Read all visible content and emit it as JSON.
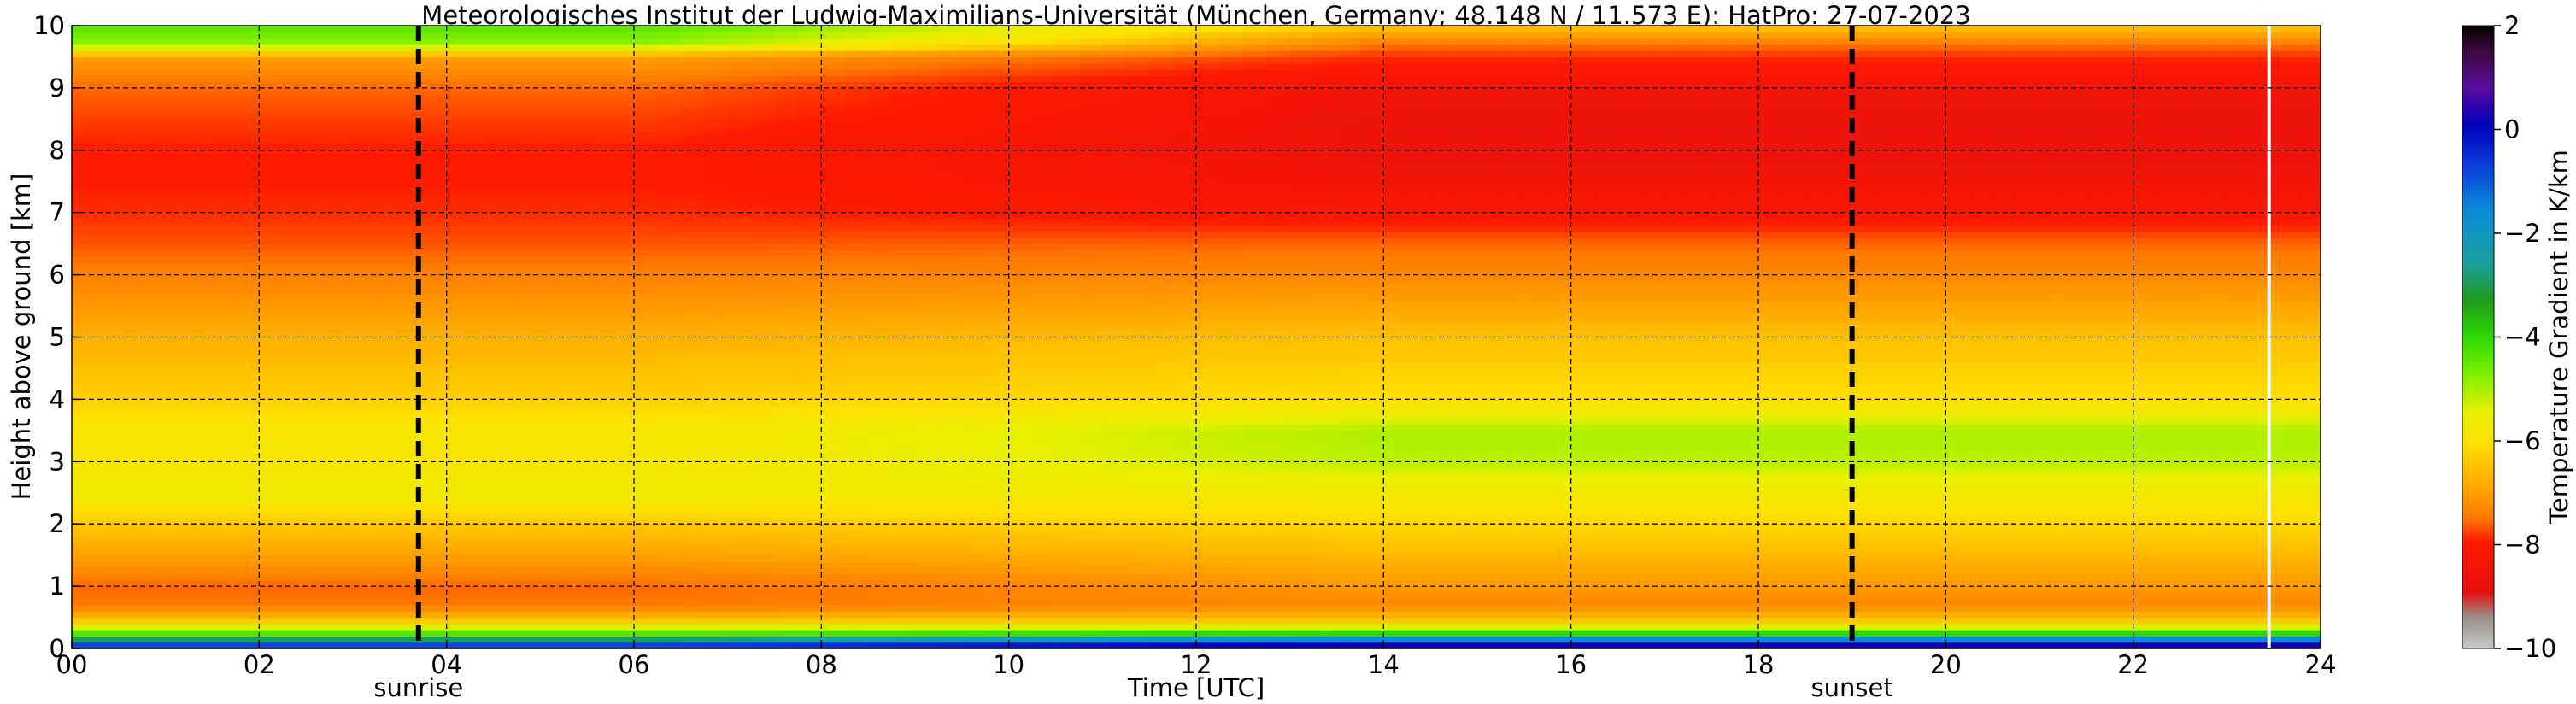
{
  "chart_data": {
    "type": "heatmap",
    "title": "Meteorologisches Institut der Ludwig-Maximilians-Universität (München, Germany; 48.148 N / 11.573 E):    HatPro: 27-07-2023",
    "xlabel": "Time [UTC]",
    "ylabel": "Height above ground [km]",
    "xlim": [
      0,
      24
    ],
    "ylim": [
      0,
      10
    ],
    "x_ticks": [
      "00",
      "02",
      "04",
      "06",
      "08",
      "10",
      "12",
      "14",
      "16",
      "18",
      "20",
      "22",
      "24"
    ],
    "y_ticks": [
      "0",
      "1",
      "2",
      "3",
      "4",
      "5",
      "6",
      "7",
      "8",
      "9",
      "10"
    ],
    "grid": true,
    "colorbar": {
      "label": "Temperature Gradient in K/km",
      "range": [
        -10,
        2
      ],
      "ticks": [
        "2",
        "0",
        "−2",
        "−4",
        "−6",
        "−8",
        "−10"
      ]
    },
    "events": [
      {
        "label": "sunrise",
        "time": 3.7
      },
      {
        "label": "sunset",
        "time": 19.0
      }
    ],
    "missing_data_at_hour": 23.45,
    "gradient_profile": {
      "heights_km": [
        0.0,
        0.1,
        0.2,
        0.3,
        0.45,
        0.7,
        1.0,
        1.5,
        2.0,
        2.5,
        3.0,
        3.5,
        4.0,
        5.0,
        6.0,
        6.5,
        7.0,
        7.5,
        8.0,
        8.5,
        9.0,
        9.5,
        9.7,
        10.0
      ],
      "morning_K_per_km": [
        0.5,
        -2.0,
        -4.0,
        -5.0,
        -6.5,
        -7.5,
        -7.6,
        -7.0,
        -6.5,
        -5.8,
        -6.0,
        -6.0,
        -6.4,
        -6.8,
        -7.4,
        -7.7,
        -7.9,
        -8.0,
        -8.0,
        -7.8,
        -7.6,
        -7.0,
        -5.0,
        -4.5
      ],
      "afternoon_K_per_km": [
        0.5,
        0.0,
        -3.0,
        -5.0,
        -6.5,
        -7.3,
        -7.1,
        -6.7,
        -6.3,
        -5.9,
        -5.3,
        -5.2,
        -6.2,
        -6.6,
        -7.3,
        -7.6,
        -8.2,
        -8.5,
        -8.6,
        -8.6,
        -8.5,
        -7.9,
        -7.5,
        -6.5
      ]
    }
  }
}
